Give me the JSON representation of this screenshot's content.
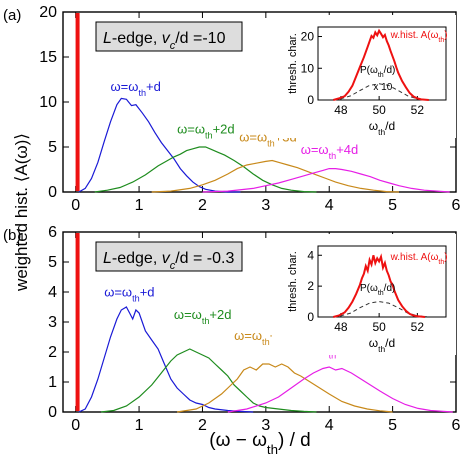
{
  "figure": {
    "ylabel": "weighted hist. ⟨A(ω)⟩",
    "xlabel_main": "(ω − ω",
    "xlabel_sub": "th",
    "xlabel_tail": ") / d"
  },
  "colors": {
    "red": "#ee1111",
    "blue": "#1a1ad6",
    "green": "#1e8c1e",
    "orange": "#c8891a",
    "magenta": "#e61ee6",
    "black": "#000000",
    "dash": "#333333",
    "box_fill": "#dddddd"
  },
  "chart_data": [
    {
      "type": "line",
      "panel_label": "(a)",
      "box_prefix": "L",
      "box_middle": "-edge, ",
      "box_v": "v",
      "box_vsub": "c",
      "box_rest": "/d =-10",
      "xlim": [
        -0.2,
        6
      ],
      "ylim": [
        0,
        20
      ],
      "xticks": [
        0,
        1,
        2,
        3,
        4,
        5,
        6
      ],
      "yticks": [
        0,
        5,
        10,
        15,
        20
      ],
      "red_line_x": 0.03,
      "series": [
        {
          "name": "ω=ωth+d",
          "label_main": "ω=ω",
          "label_sub": "th",
          "label_tail": "+d",
          "label_at": [
            0.55,
            11.2
          ],
          "color": "blue",
          "x": [
            0.05,
            0.15,
            0.25,
            0.35,
            0.45,
            0.55,
            0.65,
            0.72,
            0.8,
            0.88,
            0.95,
            1.05,
            1.15,
            1.25,
            1.35,
            1.45,
            1.55,
            1.65,
            1.75,
            1.85,
            1.95,
            2.05,
            2.2,
            2.4,
            2.6
          ],
          "y": [
            0,
            0.4,
            1.5,
            3.3,
            5.6,
            7.8,
            9.7,
            10.4,
            10.3,
            9.6,
            9.7,
            8.8,
            7.8,
            6.6,
            5.5,
            4.6,
            3.7,
            2.6,
            1.8,
            1.1,
            0.6,
            0.3,
            0.1,
            0,
            0
          ]
        },
        {
          "name": "ω=ωth+2d",
          "label_main": "ω=ω",
          "label_sub": "th",
          "label_tail": "+2d",
          "label_at": [
            1.6,
            6.5
          ],
          "color": "green",
          "x": [
            0.3,
            0.5,
            0.7,
            0.9,
            1.1,
            1.3,
            1.45,
            1.55,
            1.65,
            1.75,
            1.85,
            1.95,
            2.05,
            2.15,
            2.25,
            2.35,
            2.5,
            2.65,
            2.8,
            2.95,
            3.1,
            3.25,
            3.4,
            3.6,
            3.8
          ],
          "y": [
            0,
            0.2,
            0.5,
            1.1,
            1.9,
            2.9,
            3.5,
            3.9,
            4.2,
            4.6,
            4.8,
            5.0,
            5.0,
            4.7,
            4.4,
            4.1,
            3.5,
            2.8,
            2.0,
            1.3,
            0.8,
            0.4,
            0.2,
            0.05,
            0
          ]
        },
        {
          "name": "ω=ωth+3d",
          "label_main": "ω=ω",
          "label_sub": "th",
          "label_tail": "+3d",
          "label_at": [
            2.58,
            5.6
          ],
          "color": "orange",
          "x": [
            1.2,
            1.5,
            1.8,
            2.0,
            2.2,
            2.4,
            2.55,
            2.7,
            2.85,
            3.0,
            3.1,
            3.2,
            3.35,
            3.5,
            3.65,
            3.8,
            3.95,
            4.1,
            4.3,
            4.5,
            4.7,
            4.9,
            5.1
          ],
          "y": [
            0,
            0.1,
            0.4,
            0.8,
            1.3,
            2.0,
            2.6,
            3.0,
            3.2,
            3.4,
            3.5,
            3.3,
            3.0,
            2.7,
            2.3,
            1.9,
            1.5,
            1.1,
            0.7,
            0.4,
            0.2,
            0.05,
            0
          ]
        },
        {
          "name": "ω=ωth+4d",
          "label_main": "ω=ω",
          "label_sub": "th",
          "label_tail": "+4d",
          "label_at": [
            3.55,
            4.2
          ],
          "color": "magenta",
          "x": [
            2.0,
            2.4,
            2.8,
            3.0,
            3.2,
            3.4,
            3.6,
            3.75,
            3.9,
            4.0,
            4.1,
            4.2,
            4.35,
            4.5,
            4.65,
            4.8,
            4.95,
            5.1,
            5.3,
            5.5,
            5.7,
            5.9
          ],
          "y": [
            0,
            0.1,
            0.4,
            0.7,
            1.0,
            1.4,
            1.8,
            2.1,
            2.4,
            2.6,
            2.6,
            2.5,
            2.3,
            2.0,
            1.7,
            1.3,
            1.0,
            0.7,
            0.4,
            0.2,
            0.1,
            0
          ]
        }
      ],
      "inset": {
        "xlim": [
          46.8,
          53.5
        ],
        "ylim": [
          0,
          23
        ],
        "xticks": [
          48,
          50,
          52
        ],
        "yticks": [
          0,
          10,
          20
        ],
        "ylabel": "thresh. char.",
        "xlabel_main": "ω",
        "xlabel_sub": "th",
        "xlabel_tail": "/d",
        "red_label_main": "w.hist. A(ω",
        "red_label_sub": "th",
        "red_label_tail": ")",
        "red_label_at": [
          50.6,
          19.5
        ],
        "p_label_main": "P(ω",
        "p_label_sub": "th",
        "p_label_tail": "/d)",
        "p_label_at": [
          49.0,
          8.5
        ],
        "scale_label": "x 10",
        "scale_label_at": [
          49.7,
          3.2
        ],
        "red": {
          "x": [
            47.6,
            47.9,
            48.2,
            48.4,
            48.6,
            48.8,
            49.0,
            49.2,
            49.4,
            49.5,
            49.6,
            49.7,
            49.8,
            49.9,
            50.0,
            50.1,
            50.2,
            50.3,
            50.4,
            50.5,
            50.6,
            50.7,
            50.8,
            50.9,
            51.0,
            51.2,
            51.4,
            51.6,
            51.8,
            52.0,
            52.2,
            52.6
          ],
          "y": [
            0,
            0.5,
            1.2,
            2.6,
            4.5,
            7.5,
            10.5,
            13.5,
            16.8,
            18.5,
            20.2,
            19.6,
            21.3,
            20.4,
            21.8,
            20.9,
            19.8,
            20.5,
            18.6,
            17.2,
            15.4,
            13.8,
            12.2,
            10.3,
            8.6,
            6.0,
            4.0,
            2.2,
            1.1,
            0.5,
            0.2,
            0
          ]
        },
        "dashed": {
          "x": [
            47.6,
            48.0,
            48.5,
            49.0,
            49.5,
            50.0,
            50.5,
            51.0,
            51.5,
            52.0,
            52.5
          ],
          "y": [
            0.1,
            0.4,
            1.3,
            3.0,
            4.6,
            5.1,
            4.6,
            3.0,
            1.3,
            0.4,
            0.1
          ]
        }
      }
    },
    {
      "type": "line",
      "panel_label": "(b)",
      "box_prefix": "L",
      "box_middle": "-edge, ",
      "box_v": "v",
      "box_vsub": "c",
      "box_rest": "/d = -0.3",
      "xlim": [
        -0.2,
        6
      ],
      "ylim": [
        0,
        6
      ],
      "xticks": [
        0,
        1,
        2,
        3,
        4,
        5,
        6
      ],
      "yticks": [
        0,
        1,
        2,
        3,
        4,
        5,
        6
      ],
      "red_line_x": 0.03,
      "series": [
        {
          "name": "ω=ωth+d",
          "label_main": "ω=ω",
          "label_sub": "th",
          "label_tail": "+d",
          "label_at": [
            0.45,
            3.85
          ],
          "color": "blue",
          "x": [
            0.05,
            0.15,
            0.25,
            0.35,
            0.45,
            0.55,
            0.65,
            0.72,
            0.8,
            0.85,
            0.9,
            0.95,
            1.0,
            1.1,
            1.2,
            1.3,
            1.4,
            1.5,
            1.6,
            1.7,
            1.8,
            1.9,
            2.0,
            2.1,
            2.2,
            2.4,
            2.6,
            2.8
          ],
          "y": [
            0,
            0.1,
            0.5,
            1.1,
            1.8,
            2.5,
            3.1,
            3.4,
            3.5,
            3.3,
            3.1,
            3.4,
            3.3,
            2.7,
            2.4,
            2.1,
            1.6,
            1.1,
            0.8,
            0.6,
            0.4,
            0.3,
            0.25,
            0.15,
            0.1,
            0.05,
            0.02,
            0
          ]
        },
        {
          "name": "ω=ωth+2d",
          "label_main": "ω=ω",
          "label_sub": "th",
          "label_tail": "+2d",
          "label_at": [
            1.55,
            3.1
          ],
          "color": "green",
          "x": [
            0.4,
            0.6,
            0.8,
            1.0,
            1.2,
            1.35,
            1.5,
            1.6,
            1.7,
            1.8,
            1.9,
            2.0,
            2.1,
            2.2,
            2.3,
            2.4,
            2.5,
            2.6,
            2.7,
            2.8,
            2.9,
            3.0,
            3.2,
            3.4,
            3.6,
            3.8
          ],
          "y": [
            0,
            0.05,
            0.2,
            0.5,
            0.9,
            1.3,
            1.7,
            1.9,
            2.0,
            2.1,
            2.0,
            1.9,
            1.8,
            1.6,
            1.4,
            1.2,
            0.9,
            0.7,
            0.5,
            0.3,
            0.2,
            0.15,
            0.1,
            0.05,
            0.02,
            0
          ]
        },
        {
          "name": "ω=ωth+3d",
          "label_main": "ω=ω",
          "label_sub": "th",
          "label_tail": "+3d",
          "label_at": [
            2.5,
            2.4
          ],
          "color": "orange",
          "x": [
            1.6,
            1.9,
            2.1,
            2.3,
            2.45,
            2.55,
            2.65,
            2.75,
            2.85,
            2.95,
            3.05,
            3.15,
            3.25,
            3.35,
            3.45,
            3.55,
            3.7,
            3.85,
            4.0,
            4.2,
            4.4,
            4.6,
            4.8,
            5.0
          ],
          "y": [
            0,
            0.1,
            0.3,
            0.6,
            0.9,
            1.1,
            1.4,
            1.5,
            1.4,
            1.6,
            1.6,
            1.5,
            1.6,
            1.5,
            1.3,
            1.2,
            1.0,
            0.8,
            0.6,
            0.35,
            0.2,
            0.1,
            0.04,
            0
          ]
        },
        {
          "name": "ω=ωth+4d",
          "label_main": "ω=ω",
          "label_sub": "th",
          "label_tail": "+4d",
          "label_at": [
            3.55,
            1.95
          ],
          "color": "magenta",
          "x": [
            2.4,
            2.7,
            3.0,
            3.2,
            3.4,
            3.6,
            3.75,
            3.9,
            4.0,
            4.1,
            4.2,
            4.35,
            4.5,
            4.65,
            4.8,
            5.0,
            5.2,
            5.4,
            5.6,
            5.8,
            5.95
          ],
          "y": [
            0,
            0.1,
            0.3,
            0.5,
            0.8,
            1.1,
            1.3,
            1.45,
            1.5,
            1.4,
            1.45,
            1.3,
            1.1,
            0.9,
            0.7,
            0.45,
            0.25,
            0.12,
            0.05,
            0.02,
            0
          ]
        }
      ],
      "inset": {
        "xlim": [
          46.8,
          53.5
        ],
        "ylim": [
          0,
          4.6
        ],
        "xticks": [
          48,
          50,
          52
        ],
        "yticks": [
          0,
          2,
          4
        ],
        "ylabel": "thresh. char.",
        "xlabel_main": "ω",
        "xlabel_sub": "th",
        "xlabel_tail": "/d",
        "red_label_main": "w.hist. A(ω",
        "red_label_sub": "th",
        "red_label_tail": ")",
        "red_label_at": [
          50.6,
          3.7
        ],
        "p_label_main": "P(ω",
        "p_label_sub": "th",
        "p_label_tail": "/d)",
        "p_label_at": [
          49.0,
          1.7
        ],
        "red": {
          "x": [
            47.6,
            47.9,
            48.2,
            48.4,
            48.6,
            48.8,
            49.0,
            49.1,
            49.2,
            49.3,
            49.4,
            49.5,
            49.6,
            49.7,
            49.8,
            49.9,
            50.0,
            50.1,
            50.2,
            50.3,
            50.4,
            50.5,
            50.6,
            50.7,
            50.8,
            50.9,
            51.0,
            51.2,
            51.4,
            51.6,
            51.8,
            52.0,
            52.4
          ],
          "y": [
            0,
            0.1,
            0.3,
            0.6,
            1.0,
            1.5,
            2.1,
            2.5,
            2.8,
            3.3,
            3.0,
            3.7,
            3.4,
            4.0,
            3.5,
            3.8,
            3.6,
            3.9,
            3.2,
            3.5,
            3.0,
            2.7,
            2.3,
            2.1,
            1.7,
            1.4,
            1.1,
            0.7,
            0.4,
            0.2,
            0.1,
            0.05,
            0
          ]
        },
        "dashed": {
          "x": [
            47.6,
            48.0,
            48.5,
            49.0,
            49.5,
            50.0,
            50.5,
            51.0,
            51.5,
            52.0,
            52.5
          ],
          "y": [
            0.02,
            0.08,
            0.25,
            0.6,
            0.9,
            1.0,
            0.9,
            0.6,
            0.25,
            0.08,
            0.02
          ]
        }
      }
    }
  ]
}
